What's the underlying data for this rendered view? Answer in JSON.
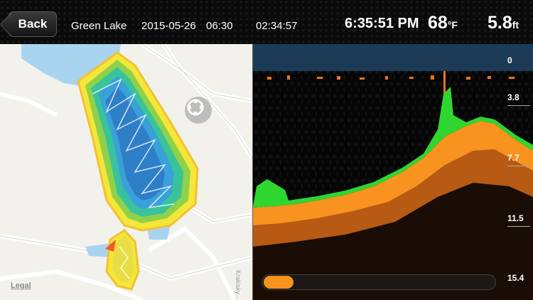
{
  "header": {
    "back_label": "Back",
    "location": "Green Lake",
    "date": "2015-05-26",
    "time": "06:30",
    "duration": "02:34:57",
    "current_time": "6:35:51 PM",
    "temperature": "68",
    "temperature_unit": "°F",
    "depth": "5.8",
    "depth_unit": "ft"
  },
  "map": {
    "legal_label": "Legal",
    "street_label": "Krakisky...",
    "compass_icon": "compass-reset-icon",
    "boat_icon": "boat-position-icon"
  },
  "sonar": {
    "depth_scale": [
      "0",
      "3.8",
      "7.7",
      "11.5",
      "15.4"
    ],
    "playback_fraction": 0.0,
    "colors": {
      "bottom": "#f7931e",
      "vegetation": "#2fd62f",
      "surface": "#1a3a55"
    }
  }
}
